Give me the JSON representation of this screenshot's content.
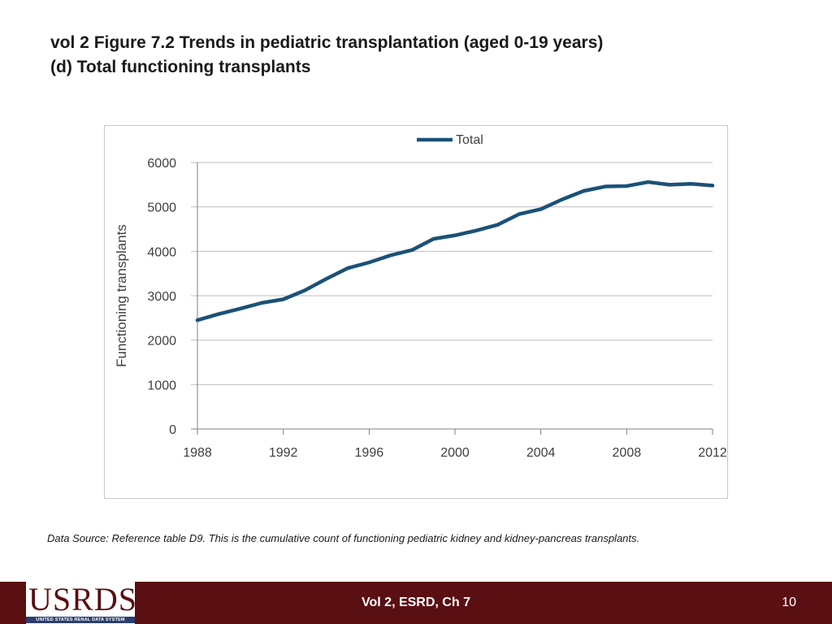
{
  "slide": {
    "title_line1": "vol 2 Figure 7.2 Trends in pediatric transplantation (aged 0-19 years)",
    "title_line2": "(d) Total functioning transplants",
    "source_note": "Data Source: Reference table D9. This is the cumulative count of functioning pediatric kidney and kidney-pancreas transplants.",
    "footer_center": "Vol 2, ESRD, Ch 7",
    "page_number": "10",
    "logo_text": "USRDS",
    "logo_subtext": "UNITED STATES RENAL DATA SYSTEM"
  },
  "colors": {
    "series": "#1b5177",
    "footer": "#5a0f12",
    "grid": "#bfbfbf"
  },
  "chart_data": {
    "type": "line",
    "title": "",
    "xlabel": "",
    "ylabel": "Functioning transplants",
    "xlim": [
      1988,
      2012
    ],
    "ylim": [
      0,
      6000
    ],
    "x_ticks": [
      1988,
      1992,
      1996,
      2000,
      2004,
      2008,
      2012
    ],
    "y_ticks": [
      0,
      1000,
      2000,
      3000,
      4000,
      5000,
      6000
    ],
    "grid": true,
    "legend_position": "top-center",
    "x": [
      1988,
      1989,
      1990,
      1991,
      1992,
      1993,
      1994,
      1995,
      1996,
      1997,
      1998,
      1999,
      2000,
      2001,
      2002,
      2003,
      2004,
      2005,
      2006,
      2007,
      2008,
      2009,
      2010,
      2011,
      2012
    ],
    "series": [
      {
        "name": "Total",
        "values": [
          2450,
          2590,
          2710,
          2840,
          2920,
          3120,
          3380,
          3620,
          3750,
          3910,
          4030,
          4280,
          4360,
          4470,
          4600,
          4840,
          4950,
          5170,
          5360,
          5460,
          5470,
          5560,
          5500,
          5520,
          5480
        ]
      }
    ]
  }
}
